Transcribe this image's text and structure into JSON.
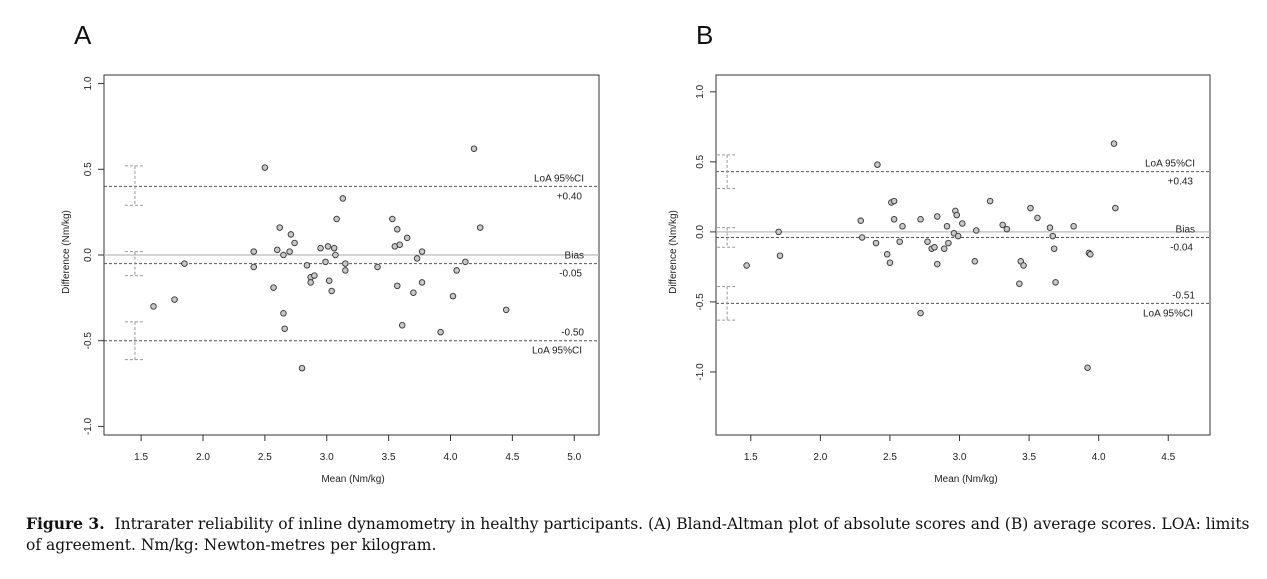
{
  "caption": {
    "label": "Figure 3.",
    "text": "Intrarater reliability of inline dynamometry in healthy participants. (A) Bland-Altman plot of absolute scores and (B) average scores. LOA: limits of agreement. Nm/kg: Newton-metres per kilogram."
  },
  "chart_data": [
    {
      "panel": "A",
      "type": "scatter",
      "xlabel": "Mean (Nm/kg)",
      "ylabel": "Difference (Nm/kg)",
      "xlim": [
        1.2,
        5.2
      ],
      "ylim": [
        -1.05,
        1.05
      ],
      "xticks": [
        "1.5",
        "2.0",
        "2.5",
        "3.0",
        "3.5",
        "4.0",
        "4.5",
        "5.0"
      ],
      "yticks": [
        "-1.0",
        "-0.5",
        "0.0",
        "0.5",
        "1.0"
      ],
      "reference_lines": [
        {
          "role": "upper",
          "value": 0.4,
          "dashed": true,
          "labels": [
            "LoA 95%CI",
            "+0.40"
          ]
        },
        {
          "role": "zero",
          "value": 0.0,
          "dashed": false,
          "labels": []
        },
        {
          "role": "bias",
          "value": -0.05,
          "dashed": true,
          "labels": [
            "Bias",
            "-0.05"
          ]
        },
        {
          "role": "lower",
          "value": -0.5,
          "dashed": true,
          "labels": [
            "-0.50",
            "LoA 95%CI"
          ]
        }
      ],
      "ci_bars": [
        {
          "x": 1.45,
          "low": 0.29,
          "high": 0.52
        },
        {
          "x": 1.45,
          "low": -0.12,
          "high": 0.02
        },
        {
          "x": 1.45,
          "low": -0.61,
          "high": -0.39
        }
      ],
      "points": [
        [
          1.6,
          -0.3
        ],
        [
          1.77,
          -0.26
        ],
        [
          1.85,
          -0.05
        ],
        [
          2.41,
          0.02
        ],
        [
          2.41,
          -0.07
        ],
        [
          2.5,
          0.51
        ],
        [
          2.57,
          -0.19
        ],
        [
          2.6,
          0.03
        ],
        [
          2.62,
          0.16
        ],
        [
          2.65,
          0.0
        ],
        [
          2.65,
          -0.34
        ],
        [
          2.66,
          -0.43
        ],
        [
          2.7,
          0.02
        ],
        [
          2.71,
          0.12
        ],
        [
          2.74,
          0.07
        ],
        [
          2.8,
          -0.66
        ],
        [
          2.84,
          -0.06
        ],
        [
          2.87,
          -0.13
        ],
        [
          2.87,
          -0.16
        ],
        [
          2.9,
          -0.12
        ],
        [
          2.95,
          0.04
        ],
        [
          2.99,
          -0.04
        ],
        [
          3.01,
          0.05
        ],
        [
          3.02,
          -0.15
        ],
        [
          3.04,
          -0.21
        ],
        [
          3.06,
          0.04
        ],
        [
          3.07,
          0.0
        ],
        [
          3.08,
          0.21
        ],
        [
          3.13,
          0.33
        ],
        [
          3.15,
          -0.05
        ],
        [
          3.15,
          -0.09
        ],
        [
          3.41,
          -0.07
        ],
        [
          3.53,
          0.21
        ],
        [
          3.55,
          0.05
        ],
        [
          3.57,
          -0.18
        ],
        [
          3.57,
          0.15
        ],
        [
          3.59,
          0.06
        ],
        [
          3.61,
          -0.41
        ],
        [
          3.65,
          0.1
        ],
        [
          3.7,
          -0.22
        ],
        [
          3.73,
          -0.02
        ],
        [
          3.77,
          -0.16
        ],
        [
          3.77,
          0.02
        ],
        [
          3.92,
          -0.45
        ],
        [
          4.02,
          -0.24
        ],
        [
          4.05,
          -0.09
        ],
        [
          4.12,
          -0.04
        ],
        [
          4.19,
          0.62
        ],
        [
          4.24,
          0.16
        ],
        [
          4.45,
          -0.32
        ]
      ]
    },
    {
      "panel": "B",
      "type": "scatter",
      "xlabel": "Mean (Nm/kg)",
      "ylabel": "Difference (Nm/kg)",
      "xlim": [
        1.25,
        4.8
      ],
      "ylim": [
        -1.45,
        1.12
      ],
      "xticks": [
        "1.5",
        "2.0",
        "2.5",
        "3.0",
        "3.5",
        "4.0",
        "4.5"
      ],
      "yticks": [
        "-1.0",
        "-0.5",
        "0.0",
        "0.5",
        "1.0"
      ],
      "reference_lines": [
        {
          "role": "upper",
          "value": 0.43,
          "dashed": true,
          "labels": [
            "LoA 95%CI",
            "+0.43"
          ]
        },
        {
          "role": "zero",
          "value": 0.0,
          "dashed": false,
          "labels": []
        },
        {
          "role": "bias",
          "value": -0.04,
          "dashed": true,
          "labels": [
            "Bias",
            "-0.04"
          ]
        },
        {
          "role": "lower",
          "value": -0.51,
          "dashed": true,
          "labels": [
            "-0.51",
            "LoA 95%CI"
          ]
        }
      ],
      "ci_bars": [
        {
          "x": 1.33,
          "low": 0.31,
          "high": 0.55
        },
        {
          "x": 1.33,
          "low": -0.11,
          "high": 0.03
        },
        {
          "x": 1.33,
          "low": -0.63,
          "high": -0.39
        }
      ],
      "points": [
        [
          1.47,
          -0.24
        ],
        [
          1.7,
          0.0
        ],
        [
          1.71,
          -0.17
        ],
        [
          2.29,
          0.08
        ],
        [
          2.3,
          -0.04
        ],
        [
          2.4,
          -0.08
        ],
        [
          2.41,
          0.48
        ],
        [
          2.48,
          -0.16
        ],
        [
          2.5,
          -0.22
        ],
        [
          2.51,
          0.21
        ],
        [
          2.53,
          0.22
        ],
        [
          2.53,
          0.09
        ],
        [
          2.57,
          -0.07
        ],
        [
          2.59,
          0.04
        ],
        [
          2.72,
          -0.58
        ],
        [
          2.72,
          0.09
        ],
        [
          2.77,
          -0.07
        ],
        [
          2.8,
          -0.12
        ],
        [
          2.82,
          -0.11
        ],
        [
          2.84,
          0.11
        ],
        [
          2.84,
          -0.23
        ],
        [
          2.89,
          -0.12
        ],
        [
          2.91,
          0.04
        ],
        [
          2.92,
          -0.08
        ],
        [
          2.96,
          -0.01
        ],
        [
          2.97,
          0.15
        ],
        [
          2.98,
          0.12
        ],
        [
          2.99,
          -0.03
        ],
        [
          3.02,
          0.06
        ],
        [
          3.11,
          -0.21
        ],
        [
          3.12,
          0.01
        ],
        [
          3.22,
          0.22
        ],
        [
          3.31,
          0.05
        ],
        [
          3.34,
          0.02
        ],
        [
          3.43,
          -0.37
        ],
        [
          3.44,
          -0.21
        ],
        [
          3.46,
          -0.24
        ],
        [
          3.51,
          0.17
        ],
        [
          3.56,
          0.1
        ],
        [
          3.65,
          0.03
        ],
        [
          3.67,
          -0.03
        ],
        [
          3.68,
          -0.12
        ],
        [
          3.69,
          -0.36
        ],
        [
          3.82,
          0.04
        ],
        [
          3.92,
          -0.97
        ],
        [
          3.93,
          -0.15
        ],
        [
          3.94,
          -0.16
        ],
        [
          4.11,
          0.63
        ],
        [
          4.12,
          0.17
        ]
      ]
    }
  ]
}
